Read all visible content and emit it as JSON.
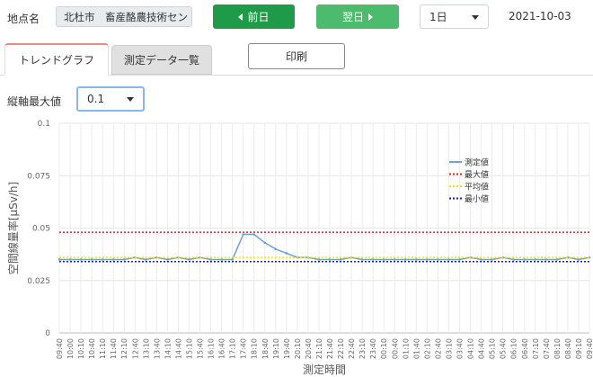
{
  "header": {
    "location_label": "地点名",
    "location_value": "北杜市　畜産酪農技術セン",
    "prev_label": "前日",
    "next_label": "翌日",
    "range_value": "1日",
    "date": "2021-10-03"
  },
  "tabs": [
    {
      "label": "トレンドグラフ",
      "active": true
    },
    {
      "label": "測定データ一覧",
      "active": false
    }
  ],
  "print_label": "印刷",
  "ymax": {
    "label": "縦軸最大値",
    "value": "0.1"
  },
  "chart_data": {
    "type": "line",
    "ylabel": "空間線量率[μSv/h]",
    "xlabel": "測定時間",
    "ylim": [
      0,
      0.1
    ],
    "yticks": [
      "0",
      "0.025",
      "0.05",
      "0.075",
      "0.1"
    ],
    "grid": true,
    "legend_position": "top-right",
    "x_ticks": [
      "09:40",
      "10:00",
      "10:10",
      "10:40",
      "11:10",
      "11:40",
      "12:10",
      "12:40",
      "13:10",
      "13:40",
      "14:10",
      "14:40",
      "15:10",
      "15:40",
      "16:10",
      "16:40",
      "17:10",
      "17:40",
      "18:10",
      "18:40",
      "19:10",
      "19:40",
      "20:10",
      "20:40",
      "21:10",
      "21:40",
      "22:10",
      "22:40",
      "23:10",
      "23:40",
      "00:10",
      "00:40",
      "01:10",
      "01:40",
      "02:10",
      "02:40",
      "03:10",
      "03:40",
      "04:10",
      "04:40",
      "05:10",
      "05:40",
      "06:10",
      "06:40",
      "07:10",
      "07:40",
      "08:10",
      "08:40",
      "09:10",
      "09:40"
    ],
    "series": [
      {
        "name": "測定値",
        "color": "#6ca0dc",
        "values": [
          0.035,
          0.035,
          0.035,
          0.035,
          0.035,
          0.035,
          0.035,
          0.036,
          0.035,
          0.036,
          0.035,
          0.036,
          0.035,
          0.036,
          0.035,
          0.035,
          0.035,
          0.047,
          0.047,
          0.043,
          0.04,
          0.038,
          0.036,
          0.036,
          0.035,
          0.035,
          0.035,
          0.036,
          0.035,
          0.035,
          0.035,
          0.035,
          0.035,
          0.035,
          0.035,
          0.035,
          0.035,
          0.035,
          0.036,
          0.035,
          0.035,
          0.036,
          0.035,
          0.035,
          0.035,
          0.035,
          0.035,
          0.036,
          0.035,
          0.036
        ]
      },
      {
        "name": "最大値",
        "color": "#d62728",
        "values": [
          0.048
        ]
      },
      {
        "name": "平均値",
        "color": "#f5e400",
        "values": [
          0.036
        ]
      },
      {
        "name": "最小値",
        "color": "#1f1f9a",
        "values": [
          0.034
        ]
      }
    ]
  }
}
